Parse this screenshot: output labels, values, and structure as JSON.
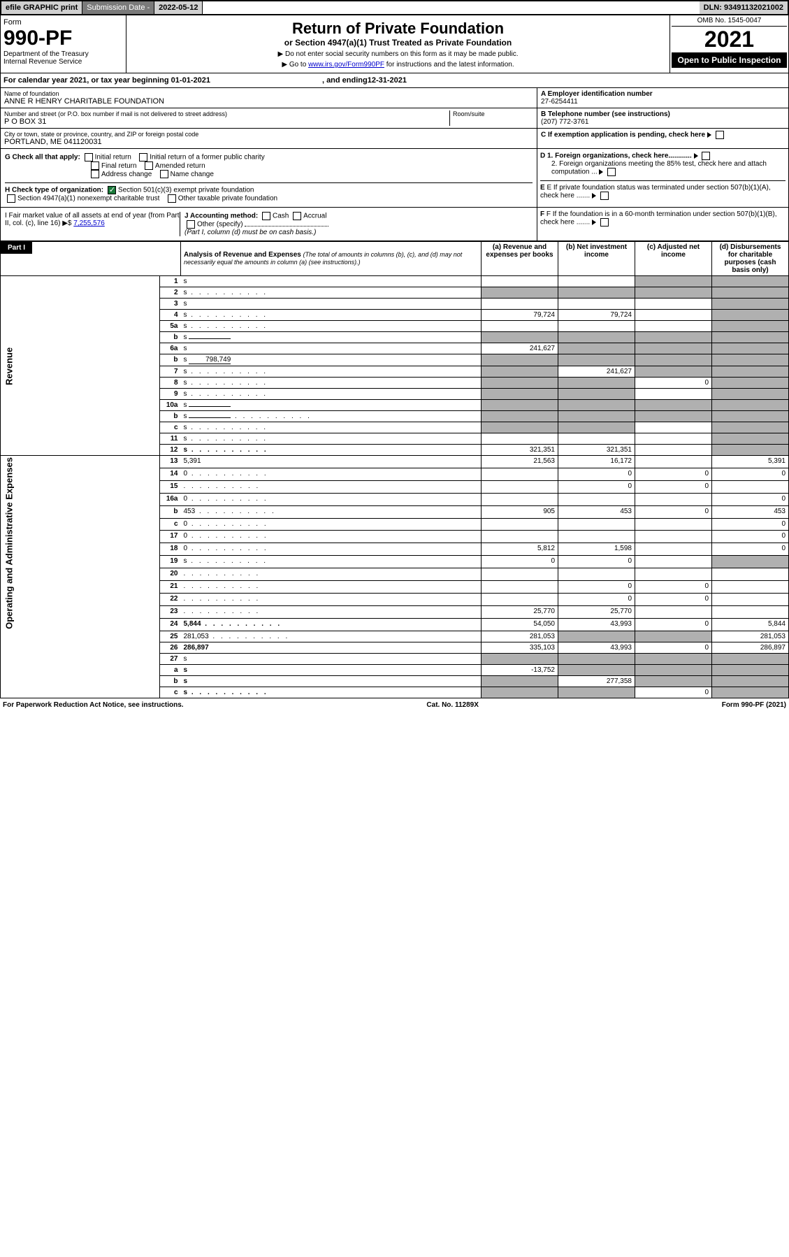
{
  "topbar": {
    "efile": "efile GRAPHIC print",
    "subdate_lbl": "Submission Date - ",
    "subdate": "2022-05-12",
    "dln_lbl": "DLN: ",
    "dln": "93491132021002"
  },
  "header": {
    "form": "Form",
    "formno": "990-PF",
    "dept": "Department of the Treasury",
    "irs": "Internal Revenue Service",
    "title": "Return of Private Foundation",
    "subtitle": "or Section 4947(a)(1) Trust Treated as Private Foundation",
    "note1": "▶ Do not enter social security numbers on this form as it may be made public.",
    "note2_pre": "▶ Go to ",
    "note2_link": "www.irs.gov/Form990PF",
    "note2_post": " for instructions and the latest information.",
    "omb": "OMB No. 1545-0047",
    "year": "2021",
    "open": "Open to Public Inspection"
  },
  "calrow": {
    "pre": "For calendar year 2021, or tax year beginning ",
    "begin": "01-01-2021",
    "mid": " , and ending ",
    "end": "12-31-2021"
  },
  "info": {
    "name_lbl": "Name of foundation",
    "name": "ANNE R HENRY CHARITABLE FOUNDATION",
    "addr_lbl": "Number and street (or P.O. box number if mail is not delivered to street address)",
    "room_lbl": "Room/suite",
    "addr": "P O BOX 31",
    "city_lbl": "City or town, state or province, country, and ZIP or foreign postal code",
    "city": "PORTLAND, ME  041120031",
    "ein_lbl": "A Employer identification number",
    "ein": "27-6254411",
    "tel_lbl": "B Telephone number (see instructions)",
    "tel": "(207) 772-3761",
    "c": "C If exemption application is pending, check here",
    "d1": "D 1. Foreign organizations, check here............",
    "d2": "2. Foreign organizations meeting the 85% test, check here and attach computation ...",
    "e": "E If private foundation status was terminated under section 507(b)(1)(A), check here .......",
    "f": "F  If the foundation is in a 60-month termination under section 507(b)(1)(B), check here .......",
    "g": "G Check all that apply:",
    "g_opts": [
      "Initial return",
      "Initial return of a former public charity",
      "Final return",
      "Amended return",
      "Address change",
      "Name change"
    ],
    "h": "H Check type of organization:",
    "h1": "Section 501(c)(3) exempt private foundation",
    "h2": "Section 4947(a)(1) nonexempt charitable trust",
    "h3": "Other taxable private foundation",
    "i": "I Fair market value of all assets at end of year (from Part II, col. (c), line 16) ▶$ ",
    "i_val": "7,255,576",
    "j": "J Accounting method:",
    "j_opts": [
      "Cash",
      "Accrual"
    ],
    "j_other": "Other (specify)",
    "j_note": "(Part I, column (d) must be on cash basis.)"
  },
  "part1": {
    "label": "Part I",
    "title": "Analysis of Revenue and Expenses",
    "title_note": "(The total of amounts in columns (b), (c), and (d) may not necessarily equal the amounts in column (a) (see instructions).)",
    "col_a": "(a) Revenue and expenses per books",
    "col_b": "(b) Net investment income",
    "col_c": "(c) Adjusted net income",
    "col_d": "(d) Disbursements for charitable purposes (cash basis only)"
  },
  "sections": {
    "rev": "Revenue",
    "exp": "Operating and Administrative Expenses"
  },
  "rows": [
    {
      "n": "1",
      "d": "s",
      "a": "",
      "b": "",
      "c": "s"
    },
    {
      "n": "2",
      "d": "s",
      "dots": true,
      "a": "s",
      "b": "s",
      "c": "s"
    },
    {
      "n": "3",
      "d": "s",
      "a": "",
      "b": "",
      "c": ""
    },
    {
      "n": "4",
      "d": "s",
      "dots": true,
      "a": "79,724",
      "b": "79,724",
      "c": ""
    },
    {
      "n": "5a",
      "d": "s",
      "dots": true,
      "a": "",
      "b": "",
      "c": ""
    },
    {
      "n": "b",
      "d": "s",
      "inline": "",
      "a": "s",
      "b": "s",
      "c": "s"
    },
    {
      "n": "6a",
      "d": "s",
      "a": "241,627",
      "b": "s",
      "c": "s"
    },
    {
      "n": "b",
      "d": "s",
      "inline": "798,749",
      "a": "s",
      "b": "s",
      "c": "s"
    },
    {
      "n": "7",
      "d": "s",
      "dots": true,
      "a": "s",
      "b": "241,627",
      "c": "s"
    },
    {
      "n": "8",
      "d": "s",
      "dots": true,
      "a": "s",
      "b": "s",
      "c": "0"
    },
    {
      "n": "9",
      "d": "s",
      "dots": true,
      "a": "s",
      "b": "s",
      "c": ""
    },
    {
      "n": "10a",
      "d": "s",
      "inline": "",
      "a": "s",
      "b": "s",
      "c": "s"
    },
    {
      "n": "b",
      "d": "s",
      "dots": true,
      "inline": "",
      "a": "s",
      "b": "s",
      "c": "s"
    },
    {
      "n": "c",
      "d": "s",
      "dots": true,
      "a": "s",
      "b": "s",
      "c": ""
    },
    {
      "n": "11",
      "d": "s",
      "dots": true,
      "a": "",
      "b": "",
      "c": ""
    },
    {
      "n": "12",
      "d": "s",
      "dots": true,
      "bold": true,
      "a": "321,351",
      "b": "321,351",
      "c": ""
    },
    {
      "n": "13",
      "d": "5,391",
      "a": "21,563",
      "b": "16,172",
      "c": ""
    },
    {
      "n": "14",
      "d": "0",
      "dots": true,
      "a": "",
      "b": "0",
      "c": "0"
    },
    {
      "n": "15",
      "d": "",
      "dots": true,
      "a": "",
      "b": "0",
      "c": "0"
    },
    {
      "n": "16a",
      "d": "0",
      "dots": true,
      "a": "",
      "b": "",
      "c": ""
    },
    {
      "n": "b",
      "d": "453",
      "dots": true,
      "a": "905",
      "b": "453",
      "c": "0"
    },
    {
      "n": "c",
      "d": "0",
      "dots": true,
      "a": "",
      "b": "",
      "c": ""
    },
    {
      "n": "17",
      "d": "0",
      "dots": true,
      "a": "",
      "b": "",
      "c": ""
    },
    {
      "n": "18",
      "d": "0",
      "dots": true,
      "a": "5,812",
      "b": "1,598",
      "c": ""
    },
    {
      "n": "19",
      "d": "s",
      "dots": true,
      "a": "0",
      "b": "0",
      "c": ""
    },
    {
      "n": "20",
      "d": "",
      "dots": true,
      "a": "",
      "b": "",
      "c": ""
    },
    {
      "n": "21",
      "d": "",
      "dots": true,
      "a": "",
      "b": "0",
      "c": "0"
    },
    {
      "n": "22",
      "d": "",
      "dots": true,
      "a": "",
      "b": "0",
      "c": "0"
    },
    {
      "n": "23",
      "d": "",
      "dots": true,
      "a": "25,770",
      "b": "25,770",
      "c": ""
    },
    {
      "n": "24",
      "d": "5,844",
      "dots": true,
      "bold": true,
      "a": "54,050",
      "b": "43,993",
      "c": "0"
    },
    {
      "n": "25",
      "d": "281,053",
      "dots": true,
      "a": "281,053",
      "b": "s",
      "c": "s"
    },
    {
      "n": "26",
      "d": "286,897",
      "bold": true,
      "a": "335,103",
      "b": "43,993",
      "c": "0"
    },
    {
      "n": "27",
      "d": "s",
      "a": "s",
      "b": "s",
      "c": "s"
    },
    {
      "n": "a",
      "d": "s",
      "bold": true,
      "a": "-13,752",
      "b": "s",
      "c": "s"
    },
    {
      "n": "b",
      "d": "s",
      "bold": true,
      "a": "s",
      "b": "277,358",
      "c": "s"
    },
    {
      "n": "c",
      "d": "s",
      "dots": true,
      "bold": true,
      "a": "s",
      "b": "s",
      "c": "0"
    }
  ],
  "footer": {
    "left": "For Paperwork Reduction Act Notice, see instructions.",
    "mid": "Cat. No. 11289X",
    "right": "Form 990-PF (2021)"
  },
  "colors": {
    "black": "#000000",
    "gray_dark": "#7a7a7a",
    "gray_light": "#d0d0d0",
    "shaded": "#b0b0b0",
    "link": "#0000cc",
    "check": "#1a7a3a"
  }
}
